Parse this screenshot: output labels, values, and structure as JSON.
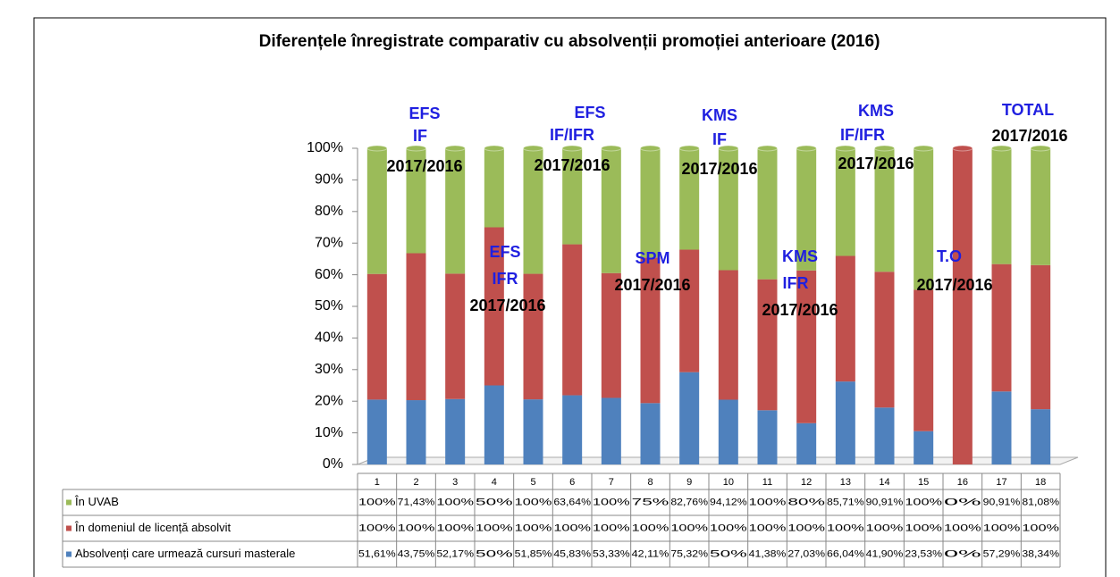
{
  "chart_data": {
    "type": "bar",
    "stacking": "percent",
    "title": "Diferențele înregistrate comparativ cu absolvenții promoției anterioare (2016)",
    "categories": [
      "1",
      "2",
      "3",
      "4",
      "5",
      "6",
      "7",
      "8",
      "9",
      "10",
      "11",
      "12",
      "13",
      "14",
      "15",
      "16",
      "17",
      "18"
    ],
    "series": [
      {
        "name": "Absolvenți care urmează cursuri masterale",
        "color": "#4f81bd",
        "values": [
          51.61,
          43.75,
          52.17,
          50,
          51.85,
          45.83,
          53.33,
          42.11,
          75.32,
          50,
          41.38,
          27.03,
          66.04,
          41.9,
          23.53,
          0,
          57.29,
          38.34
        ],
        "value_labels": [
          "51,61%",
          "43,75%",
          "52,17%",
          "50%",
          "51,85%",
          "45,83%",
          "53,33%",
          "42,11%",
          "75,32%",
          "50%",
          "41,38%",
          "27,03%",
          "66,04%",
          "41,90%",
          "23,53%",
          "0%",
          "57,29%",
          "38,34%"
        ]
      },
      {
        "name": "În domeniul de licență absolvit",
        "color": "#c0504d",
        "values": [
          100,
          100,
          100,
          100,
          100,
          100,
          100,
          100,
          100,
          100,
          100,
          100,
          100,
          100,
          100,
          100,
          100,
          100
        ],
        "value_labels": [
          "100%",
          "100%",
          "100%",
          "100%",
          "100%",
          "100%",
          "100%",
          "100%",
          "100%",
          "100%",
          "100%",
          "100%",
          "100%",
          "100%",
          "100%",
          "100%",
          "100%",
          "100%"
        ]
      },
      {
        "name": "În UVAB",
        "color": "#9bbb59",
        "values": [
          100,
          71.43,
          100,
          50,
          100,
          63.64,
          100,
          75,
          82.76,
          94.12,
          100,
          80,
          85.71,
          90.91,
          100,
          0,
          90.91,
          81.08
        ],
        "value_labels": [
          "100%",
          "71,43%",
          "100%",
          "50%",
          "100%",
          "63,64%",
          "100%",
          "75%",
          "82,76%",
          "94,12%",
          "100%",
          "80%",
          "85,71%",
          "90,91%",
          "100%",
          "0%",
          "90,91%",
          "81,08%"
        ]
      }
    ],
    "ylim": [
      0,
      100
    ],
    "yticks": [
      {
        "value": 0,
        "label": "0%"
      },
      {
        "value": 10,
        "label": "10%"
      },
      {
        "value": 20,
        "label": "20%"
      },
      {
        "value": 30,
        "label": "30%"
      },
      {
        "value": 40,
        "label": "40%"
      },
      {
        "value": 50,
        "label": "50%"
      },
      {
        "value": 60,
        "label": "60%"
      },
      {
        "value": 70,
        "label": "70%"
      },
      {
        "value": 80,
        "label": "80%"
      },
      {
        "value": 90,
        "label": "90%"
      },
      {
        "value": 100,
        "label": "100%"
      }
    ],
    "annotations": [
      "EFS",
      "IF",
      "2017/2016",
      "EFS",
      "IF/IFR",
      "2017/2016",
      "EFS",
      "IFR",
      "2017/2016",
      "SPM",
      "2017/2016",
      "KMS",
      "IF",
      "2017/2016",
      "KMS",
      "IFR",
      "2017/2016",
      "KMS",
      "IF/IFR",
      "2017/2016",
      "T.O",
      "2017/2016",
      "TOTAL",
      "2017/2016"
    ]
  }
}
